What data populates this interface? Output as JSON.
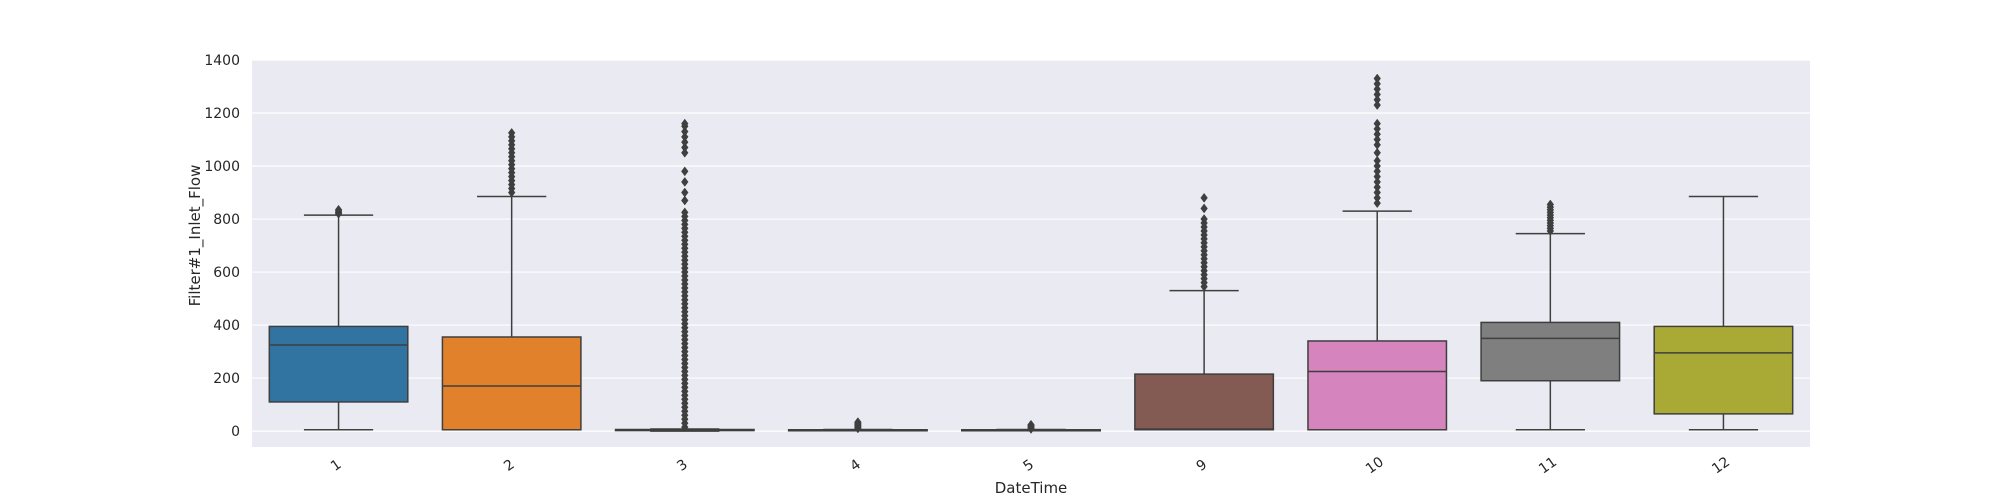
{
  "chart_data": {
    "type": "box",
    "title": "",
    "xlabel": "DateTime",
    "ylabel": "Filter#1_Inlet_Flow",
    "ylim": [
      -60,
      1400
    ],
    "yticks": [
      0,
      200,
      400,
      600,
      800,
      1000,
      1200,
      1400
    ],
    "grid": true,
    "background_color": "#eaeaf2",
    "categories": [
      "1",
      "2",
      "3",
      "4",
      "5",
      "9",
      "10",
      "11",
      "12"
    ],
    "boxes": [
      {
        "category": "1",
        "color": "#3274a1",
        "whisker_low": 5,
        "q1": 110,
        "median": 325,
        "q3": 395,
        "whisker_high": 815,
        "outliers": [
          820,
          825,
          830,
          835
        ]
      },
      {
        "category": "2",
        "color": "#e1812c",
        "whisker_low": 5,
        "q1": 5,
        "median": 170,
        "q3": 355,
        "whisker_high": 885,
        "outliers": [
          900,
          915,
          930,
          945,
          960,
          975,
          990,
          1005,
          1020,
          1035,
          1050,
          1065,
          1080,
          1095,
          1110,
          1125
        ]
      },
      {
        "category": "3",
        "color": "#3a923a",
        "whisker_low": 0,
        "q1": 2,
        "median": 4,
        "q3": 6,
        "whisker_high": 8,
        "outliers": [
          15,
          30,
          45,
          60,
          75,
          90,
          105,
          120,
          135,
          150,
          165,
          180,
          195,
          210,
          225,
          240,
          255,
          270,
          285,
          300,
          315,
          330,
          345,
          360,
          375,
          390,
          405,
          420,
          435,
          450,
          465,
          480,
          495,
          510,
          525,
          540,
          555,
          570,
          585,
          600,
          615,
          630,
          645,
          660,
          675,
          690,
          705,
          720,
          735,
          750,
          765,
          780,
          795,
          810,
          825,
          870,
          900,
          940,
          980,
          1050,
          1070,
          1090,
          1110,
          1130,
          1150,
          1160
        ]
      },
      {
        "category": "4",
        "color": "#c03d3e",
        "whisker_low": 2,
        "q1": 3,
        "median": 4,
        "q3": 5,
        "whisker_high": 6,
        "outliers": [
          10,
          14,
          18,
          22,
          26,
          30,
          34
        ]
      },
      {
        "category": "5",
        "color": "#9372b2",
        "whisker_low": 2,
        "q1": 3,
        "median": 4,
        "q3": 5,
        "whisker_high": 6,
        "outliers": [
          8,
          12,
          16,
          20,
          24
        ]
      },
      {
        "category": "9",
        "color": "#845b53",
        "whisker_low": 5,
        "q1": 5,
        "median": 8,
        "q3": 215,
        "whisker_high": 530,
        "outliers": [
          545,
          560,
          575,
          590,
          605,
          620,
          635,
          650,
          665,
          680,
          695,
          710,
          725,
          740,
          755,
          770,
          785,
          800,
          840,
          880
        ]
      },
      {
        "category": "10",
        "color": "#d684bd",
        "whisker_low": 5,
        "q1": 5,
        "median": 225,
        "q3": 340,
        "whisker_high": 830,
        "outliers": [
          860,
          880,
          900,
          920,
          940,
          960,
          980,
          1000,
          1020,
          1050,
          1080,
          1100,
          1120,
          1140,
          1160,
          1230,
          1250,
          1270,
          1290,
          1310,
          1330
        ]
      },
      {
        "category": "11",
        "color": "#7f7f7f",
        "whisker_low": 5,
        "q1": 190,
        "median": 350,
        "q3": 410,
        "whisker_high": 745,
        "outliers": [
          755,
          765,
          775,
          785,
          795,
          805,
          815,
          825,
          835,
          845,
          855
        ]
      },
      {
        "category": "12",
        "color": "#a9aa35",
        "whisker_low": 5,
        "q1": 65,
        "median": 295,
        "q3": 395,
        "whisker_high": 885,
        "outliers": []
      }
    ]
  }
}
